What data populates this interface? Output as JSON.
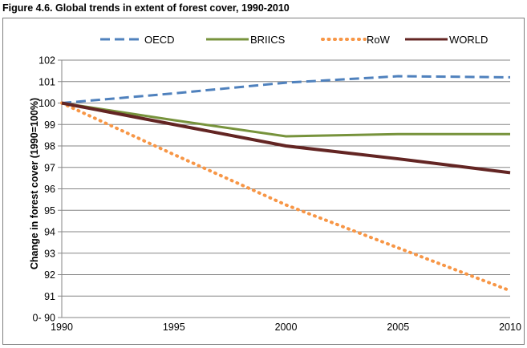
{
  "figure_title": "Figure 4.6. Global trends in extent of forest cover, 1990-2010",
  "chart_data": {
    "type": "line",
    "title": "Figure 4.6. Global trends in extent of forest cover, 1990-2010",
    "xlabel": "",
    "ylabel": "Change in forest cover  (1990=100%)",
    "x": [
      1990,
      1995,
      2000,
      2005,
      2010
    ],
    "x_ticks": [
      "1990",
      "1995",
      "2000",
      "2005",
      "2010"
    ],
    "y_ticks": [
      "0- 90",
      "91",
      "92",
      "93",
      "94",
      "95",
      "96",
      "97",
      "98",
      "99",
      "100",
      "101",
      "102"
    ],
    "ylim": [
      90,
      102
    ],
    "grid": "horizontal",
    "legend_position": "top",
    "series": [
      {
        "name": "OECD",
        "color": "#4f81bd",
        "style": "dashed",
        "values": [
          100,
          100.45,
          100.95,
          101.25,
          101.2
        ]
      },
      {
        "name": "BRIICS",
        "color": "#77933c",
        "style": "solid",
        "values": [
          100,
          99.2,
          98.45,
          98.55,
          98.55
        ]
      },
      {
        "name": "RoW",
        "color": "#f79646",
        "style": "dotted",
        "values": [
          100,
          97.6,
          95.25,
          93.25,
          91.25
        ]
      },
      {
        "name": "WORLD",
        "color": "#632523",
        "style": "solid",
        "values": [
          100,
          99.0,
          98.0,
          97.4,
          96.75
        ]
      }
    ]
  }
}
